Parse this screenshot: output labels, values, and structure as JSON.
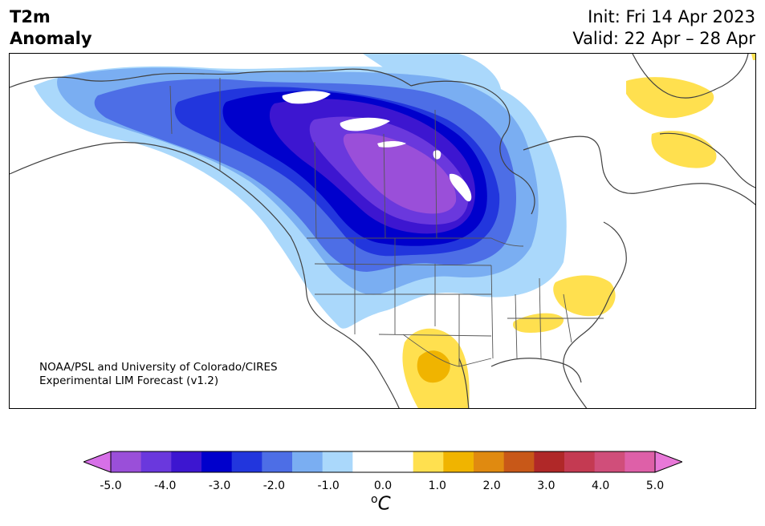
{
  "header": {
    "title_line1": "T2m",
    "title_line2": "Anomaly",
    "init_text": "Init: Fri 14 Apr 2023",
    "valid_text": "Valid: 22 Apr – 28 Apr"
  },
  "credit": {
    "line1": "NOAA/PSL and University of Colorado/CIRES",
    "line2": "Experimental LIM Forecast (v1.2)"
  },
  "colorbar": {
    "colors": [
      "#d770e8",
      "#9a4fd9",
      "#6a38dd",
      "#3d16d0",
      "#0000cc",
      "#2236dd",
      "#4d6ee6",
      "#7aaef2",
      "#aad8fb",
      "#ffffff",
      "#ffffff",
      "#ffe04f",
      "#f0b400",
      "#e08a10",
      "#c85818",
      "#b02828",
      "#c43a52",
      "#d04e7a",
      "#de60a8",
      "#e878d8"
    ],
    "tick_labels": [
      "-5.0",
      "-4.0",
      "-3.0",
      "-2.0",
      "-1.0",
      "0.0",
      "1.0",
      "2.0",
      "3.0",
      "4.0",
      "5.0"
    ],
    "unit_base": "o",
    "unit_text": "C"
  }
}
